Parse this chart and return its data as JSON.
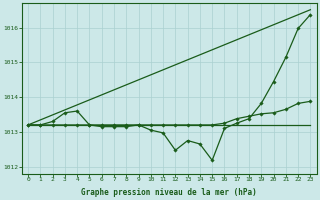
{
  "xlabel": "Graphe pression niveau de la mer (hPa)",
  "xlim": [
    0,
    23
  ],
  "ylim": [
    1011.8,
    1016.7
  ],
  "yticks": [
    1012,
    1013,
    1014,
    1015,
    1016
  ],
  "xticks": [
    0,
    1,
    2,
    3,
    4,
    5,
    6,
    7,
    8,
    9,
    10,
    11,
    12,
    13,
    14,
    15,
    16,
    17,
    18,
    19,
    20,
    21,
    22,
    23
  ],
  "bg_color": "#cce8e8",
  "grid_color": "#aad0d0",
  "line_color": "#1a5c1a",
  "line_flat": [
    1013.2,
    1013.2,
    1013.2,
    1013.2,
    1013.2,
    1013.2,
    1013.2,
    1013.2,
    1013.2,
    1013.2,
    1013.2,
    1013.2,
    1013.2,
    1013.2,
    1013.2,
    1013.2,
    1013.2,
    1013.2,
    1013.2,
    1013.2,
    1013.2,
    1013.2,
    1013.2,
    1013.2
  ],
  "line_dip_markers": [
    1013.2,
    1013.2,
    1013.3,
    1013.55,
    1013.6,
    1013.2,
    1013.15,
    1013.15,
    1013.15,
    1013.2,
    1013.05,
    1012.97,
    1012.47,
    1012.75,
    1012.65,
    1012.18,
    1013.1,
    1013.25,
    1013.38,
    1013.82,
    1014.45,
    1015.15,
    1015.98,
    1016.38
  ],
  "line_mid_markers": [
    1013.2,
    1013.2,
    1013.2,
    1013.2,
    1013.2,
    1013.2,
    1013.2,
    1013.2,
    1013.2,
    1013.2,
    1013.2,
    1013.2,
    1013.2,
    1013.2,
    1013.2,
    1013.2,
    1013.25,
    1013.38,
    1013.45,
    1013.52,
    1013.55,
    1013.65,
    1013.82,
    1013.88
  ]
}
